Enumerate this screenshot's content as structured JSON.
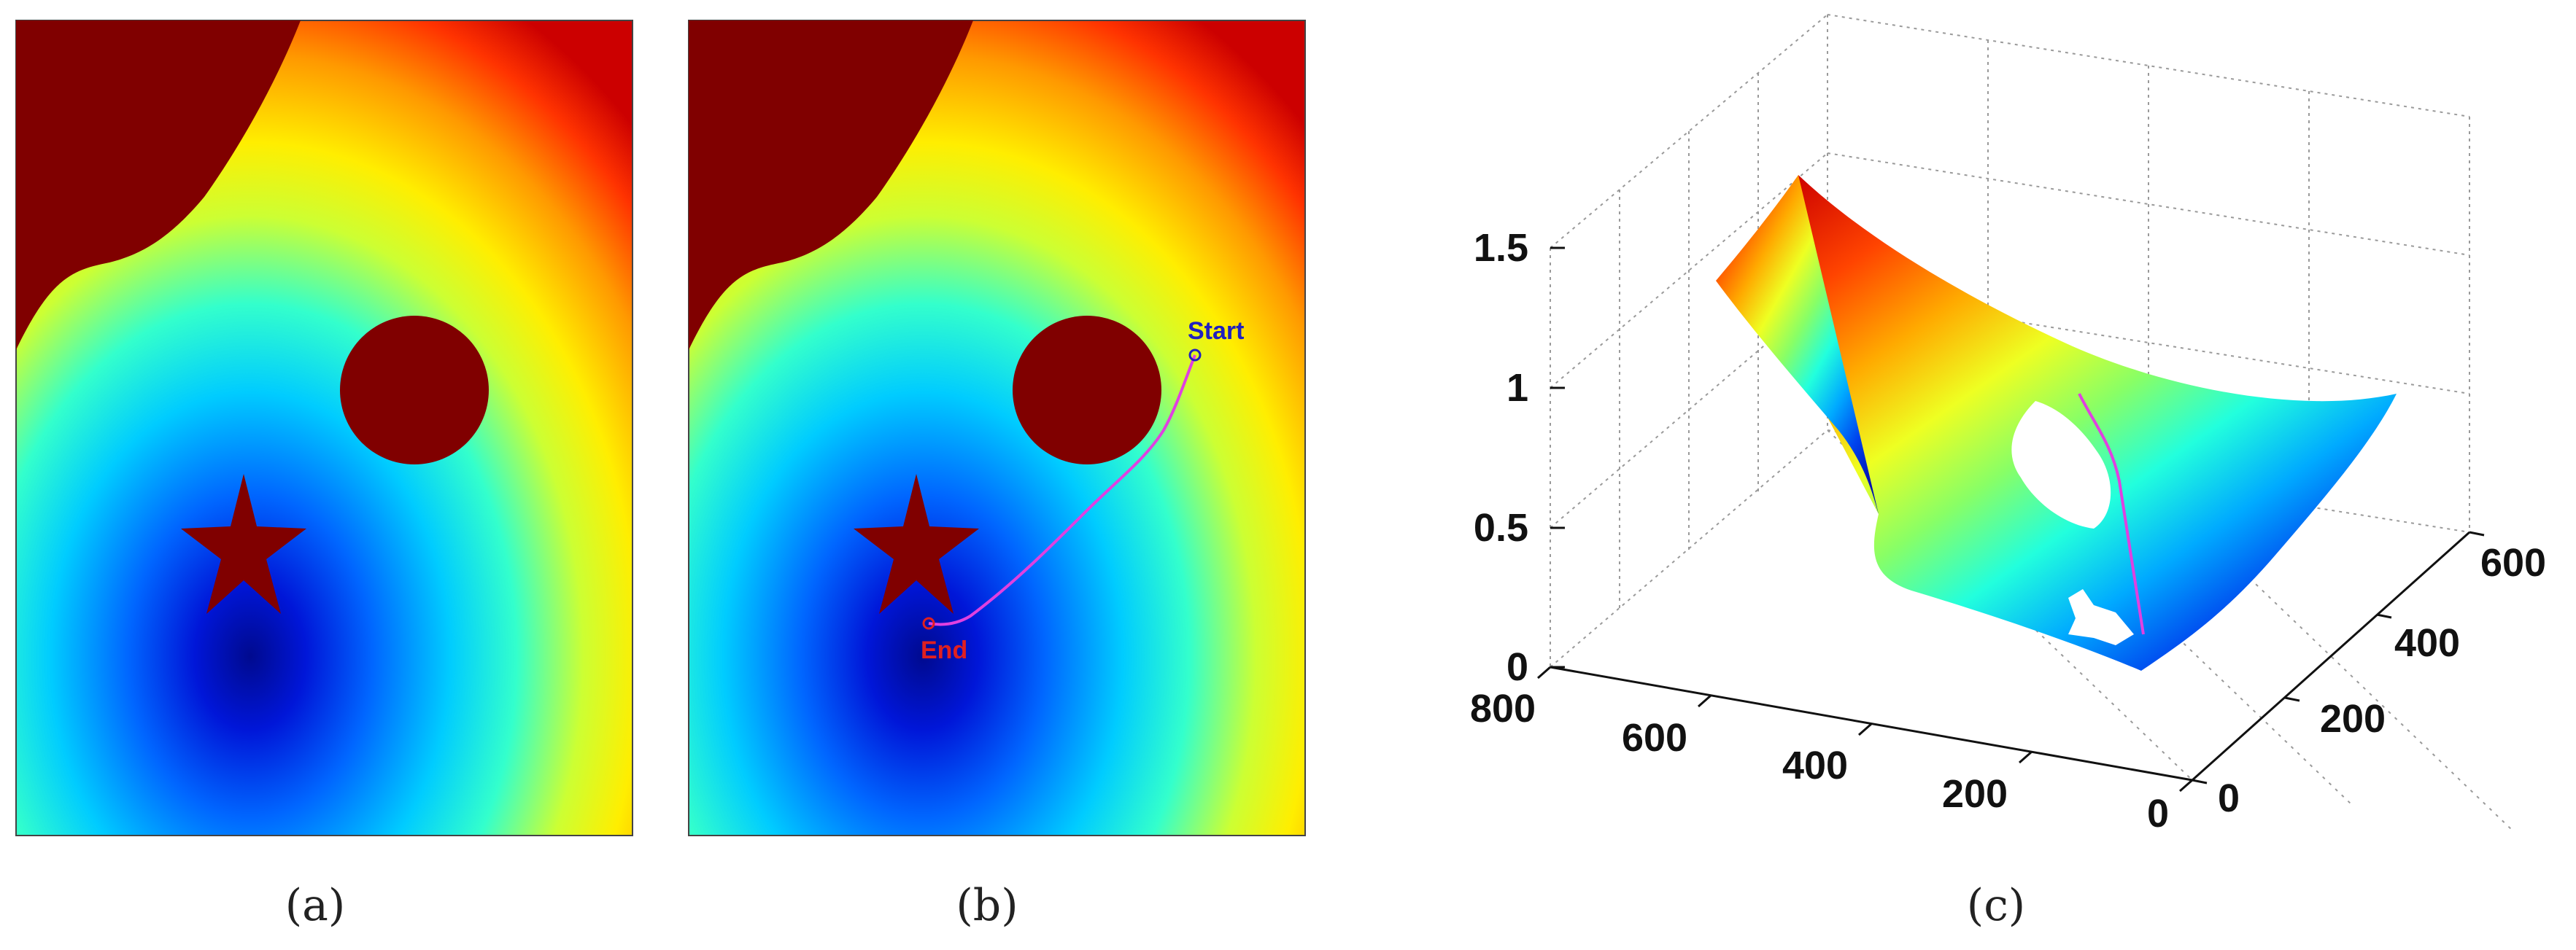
{
  "colors": {
    "obstacle": "#800000",
    "path_line": "#e040e0",
    "start_marker": "#2020c0",
    "end_marker": "#e02020",
    "grid": "#9a9a9a",
    "axis": "#111111"
  },
  "chart_data": [
    {
      "panel": "a",
      "type": "heatmap",
      "title": "",
      "caption": "(a)",
      "description_elements": [
        "distance field",
        "circle obstacle",
        "star obstacle",
        "corner obstacle"
      ],
      "colormap": "jet"
    },
    {
      "panel": "b",
      "type": "heatmap",
      "title": "",
      "caption": "(b)",
      "colormap": "jet",
      "path_labels": {
        "start": "Start",
        "end": "End"
      }
    },
    {
      "panel": "c",
      "type": "surface",
      "title": "",
      "caption": "(c)",
      "colormap": "jet",
      "z_ticks": [
        "0",
        "0.5",
        "1",
        "1.5"
      ],
      "z_range": [
        0,
        1.5
      ],
      "x_ticks": [
        "800",
        "600",
        "400",
        "200",
        "0"
      ],
      "x_range": [
        0,
        800
      ],
      "y_ticks": [
        "0",
        "200",
        "400",
        "600"
      ],
      "y_range": [
        0,
        600
      ]
    }
  ]
}
